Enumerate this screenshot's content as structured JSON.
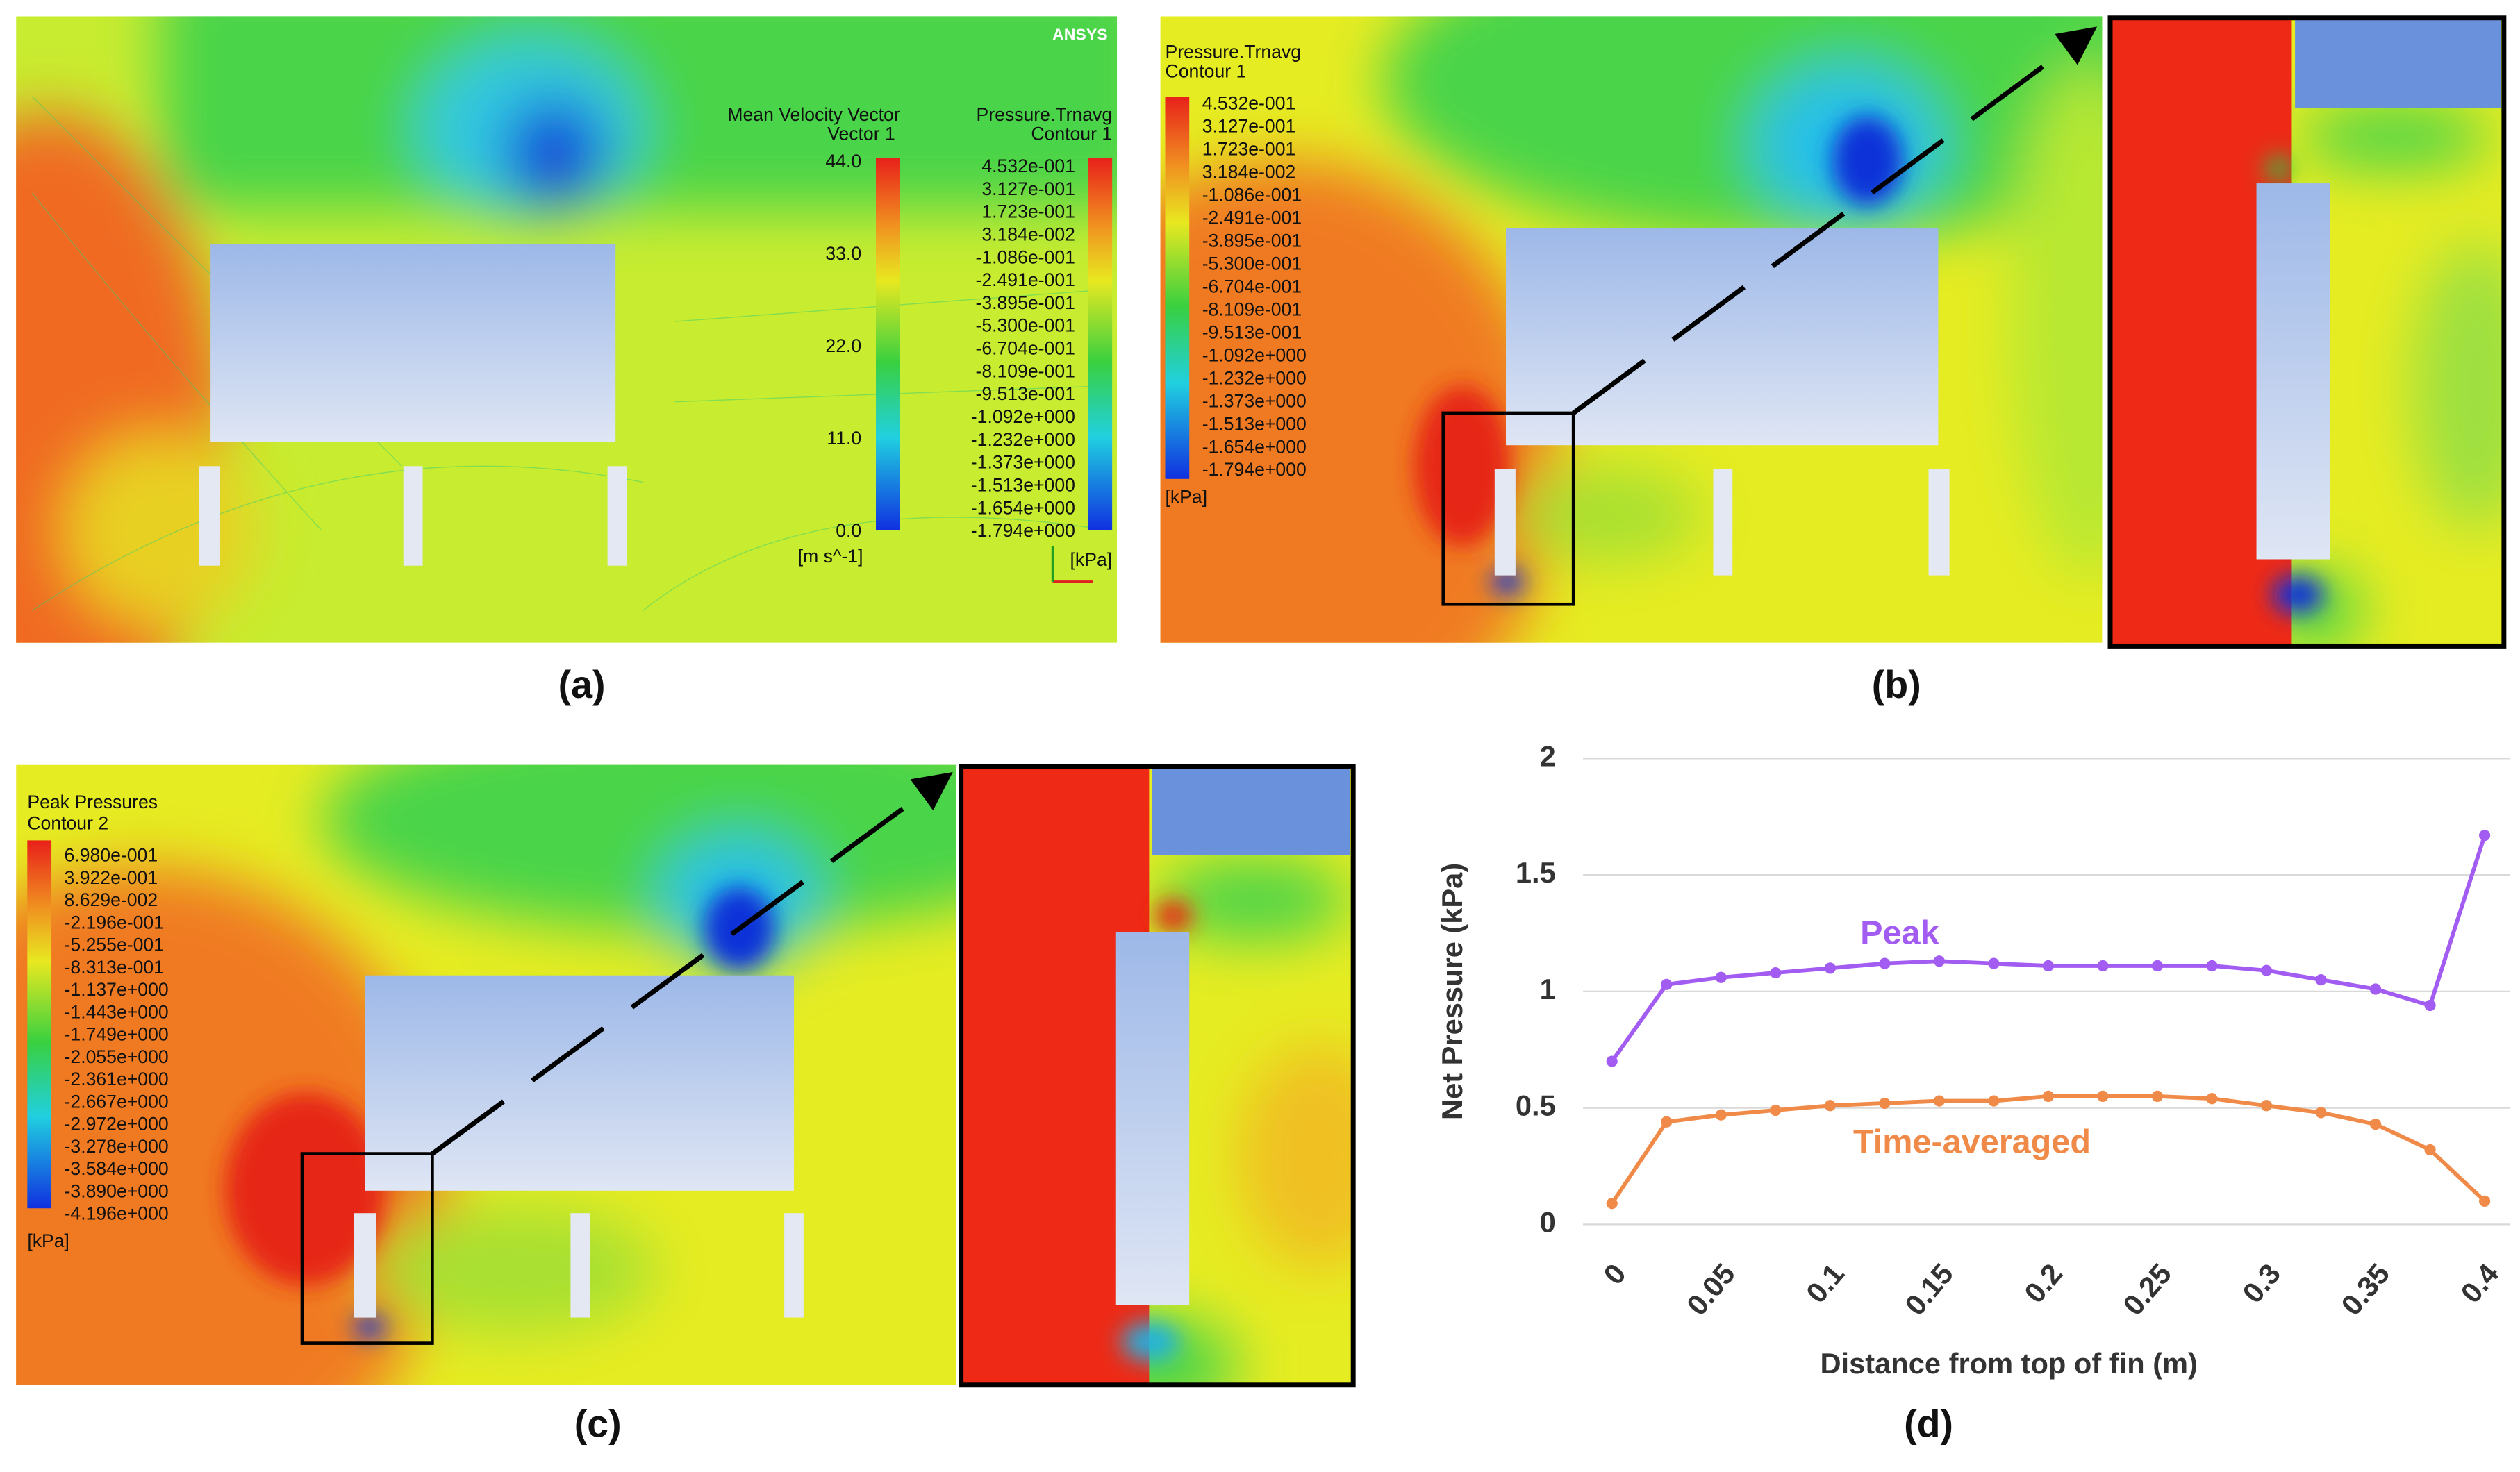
{
  "panels": {
    "a": {
      "label": "(a)",
      "logo": "ANSYS",
      "vector_legend": {
        "title": "Mean Velocity Vector",
        "subtitle": "Vector 1",
        "labels": [
          "44.0",
          "33.0",
          "22.0",
          "11.0",
          "0.0"
        ],
        "unit": "[m s^-1]"
      },
      "pressure_legend": {
        "title": "Pressure.Trnavg",
        "subtitle": "Contour 1",
        "labels": [
          "4.532e-001",
          "3.127e-001",
          "1.723e-001",
          "3.184e-002",
          "-1.086e-001",
          "-2.491e-001",
          "-3.895e-001",
          "-5.300e-001",
          "-6.704e-001",
          "-8.109e-001",
          "-9.513e-001",
          "-1.092e+000",
          "-1.232e+000",
          "-1.373e+000",
          "-1.513e+000",
          "-1.654e+000",
          "-1.794e+000"
        ],
        "unit": "[kPa]"
      }
    },
    "b": {
      "label": "(b)",
      "pressure_legend": {
        "title": "Pressure.Trnavg",
        "subtitle": "Contour 1",
        "labels": [
          "4.532e-001",
          "3.127e-001",
          "1.723e-001",
          "3.184e-002",
          "-1.086e-001",
          "-2.491e-001",
          "-3.895e-001",
          "-5.300e-001",
          "-6.704e-001",
          "-8.109e-001",
          "-9.513e-001",
          "-1.092e+000",
          "-1.232e+000",
          "-1.373e+000",
          "-1.513e+000",
          "-1.654e+000",
          "-1.794e+000"
        ],
        "unit": "[kPa]"
      }
    },
    "c": {
      "label": "(c)",
      "pressure_legend": {
        "title": "Peak Pressures",
        "subtitle": "Contour 2",
        "labels": [
          "6.980e-001",
          "3.922e-001",
          "8.629e-002",
          "-2.196e-001",
          "-5.255e-001",
          "-8.313e-001",
          "-1.137e+000",
          "-1.443e+000",
          "-1.749e+000",
          "-2.055e+000",
          "-2.361e+000",
          "-2.667e+000",
          "-2.972e+000",
          "-3.278e+000",
          "-3.584e+000",
          "-3.890e+000",
          "-4.196e+000"
        ],
        "unit": "[kPa]"
      }
    },
    "d": {
      "label": "(d)"
    }
  },
  "chart_data": {
    "type": "line",
    "x_label": "Distance from top of fin (m)",
    "y_label": "Net Pressure (kPa)",
    "x": [
      0,
      0.025,
      0.05,
      0.075,
      0.1,
      0.125,
      0.15,
      0.175,
      0.2,
      0.225,
      0.25,
      0.275,
      0.3,
      0.325,
      0.35,
      0.375,
      0.4
    ],
    "series": [
      {
        "name": "Peak",
        "color": "#a25cf2",
        "values": [
          0.7,
          1.03,
          1.06,
          1.08,
          1.1,
          1.12,
          1.13,
          1.12,
          1.11,
          1.11,
          1.11,
          1.11,
          1.09,
          1.05,
          1.01,
          0.94,
          1.67
        ]
      },
      {
        "name": "Time-averaged",
        "color": "#f08a48",
        "values": [
          0.09,
          0.44,
          0.47,
          0.49,
          0.51,
          0.52,
          0.53,
          0.53,
          0.55,
          0.55,
          0.55,
          0.54,
          0.51,
          0.48,
          0.43,
          0.32,
          0.1
        ]
      }
    ],
    "xlim": [
      0,
      0.4
    ],
    "ylim": [
      0,
      2
    ],
    "xticks": [
      0,
      0.05,
      0.1,
      0.15,
      0.2,
      0.25,
      0.3,
      0.35,
      0.4
    ],
    "yticks": [
      0,
      0.5,
      1,
      1.5,
      2
    ],
    "grid": true
  }
}
